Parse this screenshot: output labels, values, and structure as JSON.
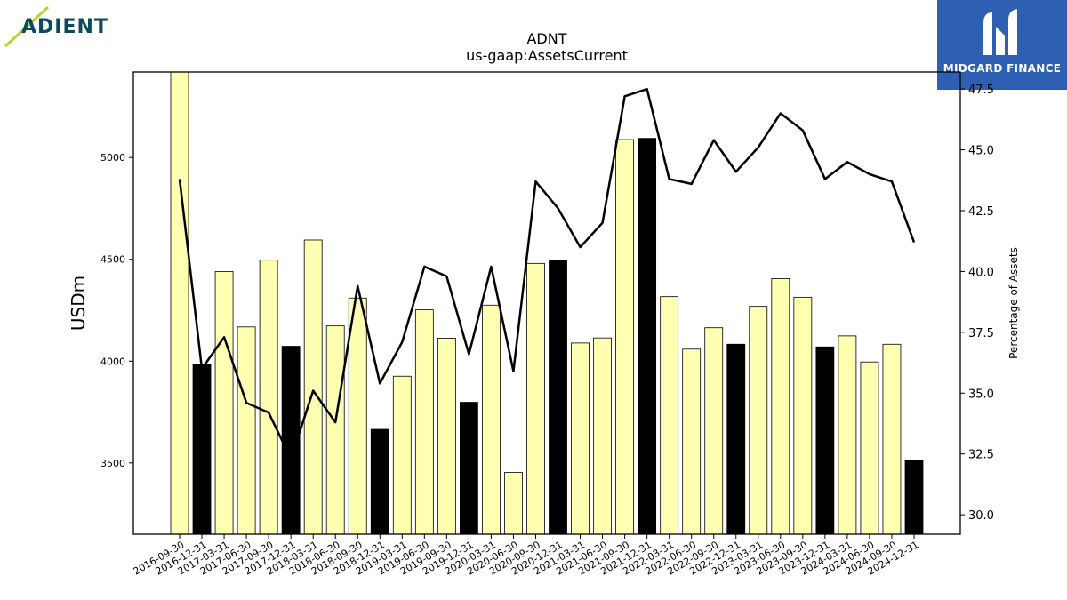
{
  "logos": {
    "left_brand": "ADIENT",
    "right_brand": "MIDGARD FINANCE",
    "right_bg": "#2d5fb3",
    "left_color": "#0b4a5a",
    "left_accent": "#b7d433"
  },
  "chart_data": {
    "type": "bar",
    "title": "ADNT",
    "subtitle": "us-gaap:AssetsCurrent",
    "ylabel": "USDm",
    "ylabel_right": "Percentage of Assets",
    "ylim": [
      3150,
      5420
    ],
    "y2lim": [
      29.2,
      48.2
    ],
    "yticks": [
      3500,
      4000,
      4500,
      5000
    ],
    "y2ticks": [
      30.0,
      32.5,
      35.0,
      37.5,
      40.0,
      42.5,
      45.0,
      47.5
    ],
    "categories": [
      "2016-09-30",
      "2016-12-31",
      "2017-03-31",
      "2017-06-30",
      "2017-09-30",
      "2017-12-31",
      "2018-03-31",
      "2018-06-30",
      "2018-09-30",
      "2018-12-31",
      "2019-03-31",
      "2019-06-30",
      "2019-09-30",
      "2019-12-31",
      "2020-03-31",
      "2020-06-30",
      "2020-09-30",
      "2020-12-31",
      "2021-03-31",
      "2021-06-30",
      "2021-09-30",
      "2021-12-31",
      "2022-03-31",
      "2022-06-30",
      "2022-09-30",
      "2022-12-31",
      "2023-03-31",
      "2023-06-30",
      "2023-09-30",
      "2023-12-31",
      "2024-03-31",
      "2024-06-30",
      "2024-09-30",
      "2024-12-31"
    ],
    "values": [
      5420,
      3985,
      4440,
      4168,
      4496,
      4073,
      4595,
      4173,
      4310,
      3665,
      3926,
      4252,
      4113,
      3798,
      4275,
      3453,
      4480,
      4495,
      4089,
      4114,
      5088,
      5094,
      4317,
      4059,
      4164,
      4083,
      4269,
      4405,
      4314,
      4070,
      4124,
      3996,
      4083,
      3515
    ],
    "bar_colors": [
      "#ffffb2",
      "#000000",
      "#ffffb2",
      "#ffffb2",
      "#ffffb2",
      "#000000",
      "#ffffb2",
      "#ffffb2",
      "#ffffb2",
      "#000000",
      "#ffffb2",
      "#ffffb2",
      "#ffffb2",
      "#000000",
      "#ffffb2",
      "#ffffb2",
      "#ffffb2",
      "#000000",
      "#ffffb2",
      "#ffffb2",
      "#ffffb2",
      "#000000",
      "#ffffb2",
      "#ffffb2",
      "#ffffb2",
      "#000000",
      "#ffffb2",
      "#ffffb2",
      "#ffffb2",
      "#000000",
      "#ffffb2",
      "#ffffb2",
      "#ffffb2",
      "#000000"
    ],
    "line_values": [
      43.8,
      36.0,
      37.3,
      34.6,
      34.2,
      32.3,
      35.1,
      33.8,
      39.4,
      35.4,
      37.1,
      40.2,
      39.8,
      36.6,
      40.2,
      35.9,
      43.7,
      42.6,
      41.0,
      42.0,
      47.2,
      47.5,
      43.8,
      43.6,
      45.4,
      44.1,
      45.1,
      46.5,
      45.8,
      43.8,
      44.5,
      44.0,
      43.7,
      41.2
    ],
    "line_color": "#000000",
    "grid": false,
    "legend": "none"
  }
}
